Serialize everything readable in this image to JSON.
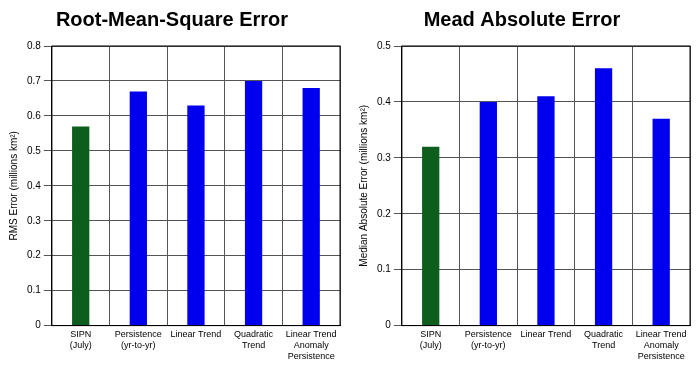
{
  "chart_data": [
    {
      "type": "bar",
      "title": "Root-Mean-Square Error",
      "y_label": "RMS Error (millions km²)",
      "categories": [
        [
          "SIPN",
          "(July)"
        ],
        [
          "Persistence",
          "(yr-to-yr)"
        ],
        [
          "Linear Trend"
        ],
        [
          "Quadratic",
          "Trend"
        ],
        [
          "Linear Trend",
          "Anomaly",
          "Persistence"
        ]
      ],
      "values": [
        0.57,
        0.67,
        0.63,
        0.7,
        0.68
      ],
      "colors": [
        "#0d5e1c",
        "#0000ee",
        "#0000ee",
        "#0000ee",
        "#0000ee"
      ],
      "ylim": [
        0,
        0.8
      ],
      "yticks": [
        0,
        0.1,
        0.2,
        0.3,
        0.4,
        0.5,
        0.6,
        0.7,
        0.8
      ],
      "grid": true
    },
    {
      "type": "bar",
      "title": "Mead Absolute Error",
      "y_label": "Median Absolute Error (millions km²)",
      "categories": [
        [
          "SIPN",
          "(July)"
        ],
        [
          "Persistence",
          "(yr-to-yr)"
        ],
        [
          "Linear Trend"
        ],
        [
          "Quadratic",
          "Trend"
        ],
        [
          "Linear Trend",
          "Anomaly",
          "Persistence"
        ]
      ],
      "values": [
        0.32,
        0.4,
        0.41,
        0.46,
        0.37
      ],
      "colors": [
        "#0d5e1c",
        "#0000ee",
        "#0000ee",
        "#0000ee",
        "#0000ee"
      ],
      "ylim": [
        0,
        0.5
      ],
      "yticks": [
        0,
        0.1,
        0.2,
        0.3,
        0.4,
        0.5
      ],
      "grid": true
    }
  ]
}
